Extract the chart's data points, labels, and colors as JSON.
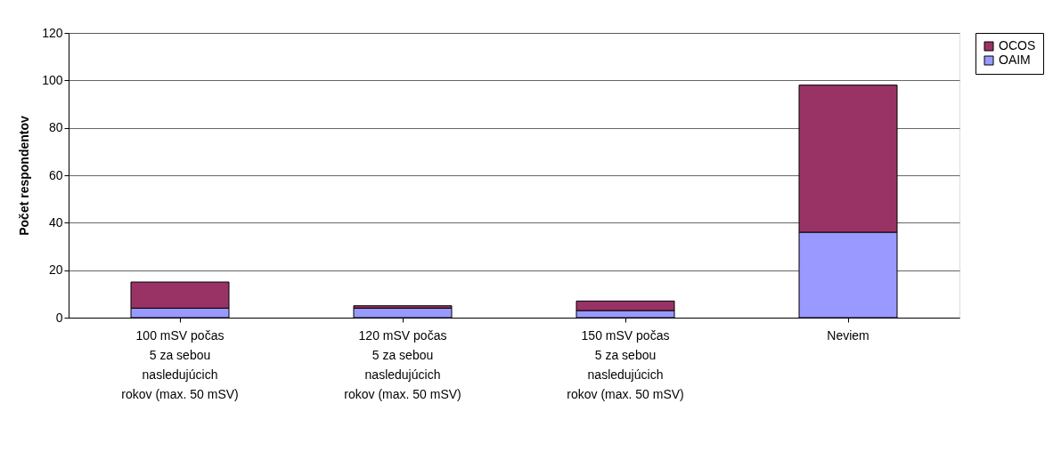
{
  "chart_data": {
    "type": "bar",
    "stacked": true,
    "ylabel": "Počet respondentov",
    "categories": [
      "100 mSV počas\n5 za sebou\nnasledujúcich\nrokov (max. 50 mSV)",
      "120 mSV počas\n5 za sebou\nnasledujúcich\nrokov (max. 50 mSV)",
      "150 mSV počas\n5 za sebou\nnasledujúcich\nrokov (max. 50 mSV)",
      "Neviem"
    ],
    "series": [
      {
        "name": "OAIM",
        "color": "#9999ff",
        "values": [
          4,
          4,
          3,
          36
        ]
      },
      {
        "name": "OCOS",
        "color": "#993366",
        "values": [
          11,
          1,
          4,
          62
        ]
      }
    ],
    "ylim": [
      0,
      120
    ],
    "yticks": [
      0,
      20,
      40,
      60,
      80,
      100,
      120
    ],
    "grid": "y",
    "legend": "right"
  }
}
